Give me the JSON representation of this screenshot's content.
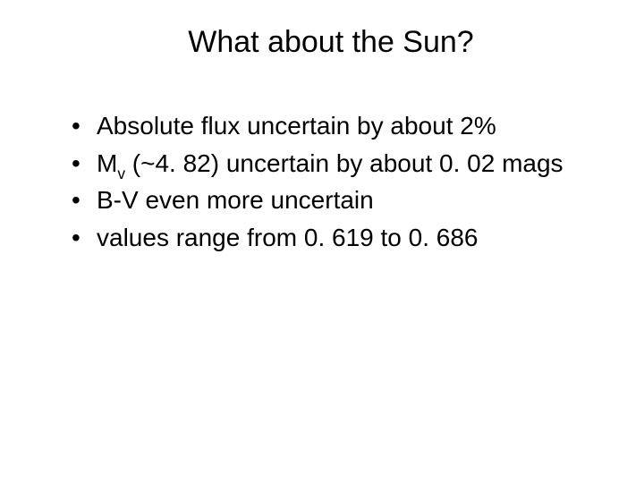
{
  "slide": {
    "title": "What about the Sun?",
    "bullets": [
      {
        "pre": "Absolute flux uncertain by about 2%",
        "sub": "",
        "post": ""
      },
      {
        "pre": "M",
        "sub": "v",
        "post": " (~4. 82) uncertain by about 0. 02 mags"
      },
      {
        "pre": "B-V even more uncertain",
        "sub": "",
        "post": ""
      },
      {
        "pre": "values range from 0. 619 to 0. 686",
        "sub": "",
        "post": ""
      }
    ],
    "colors": {
      "background": "#ffffff",
      "text": "#000000"
    },
    "title_fontsize": 34,
    "bullet_fontsize": 28
  }
}
